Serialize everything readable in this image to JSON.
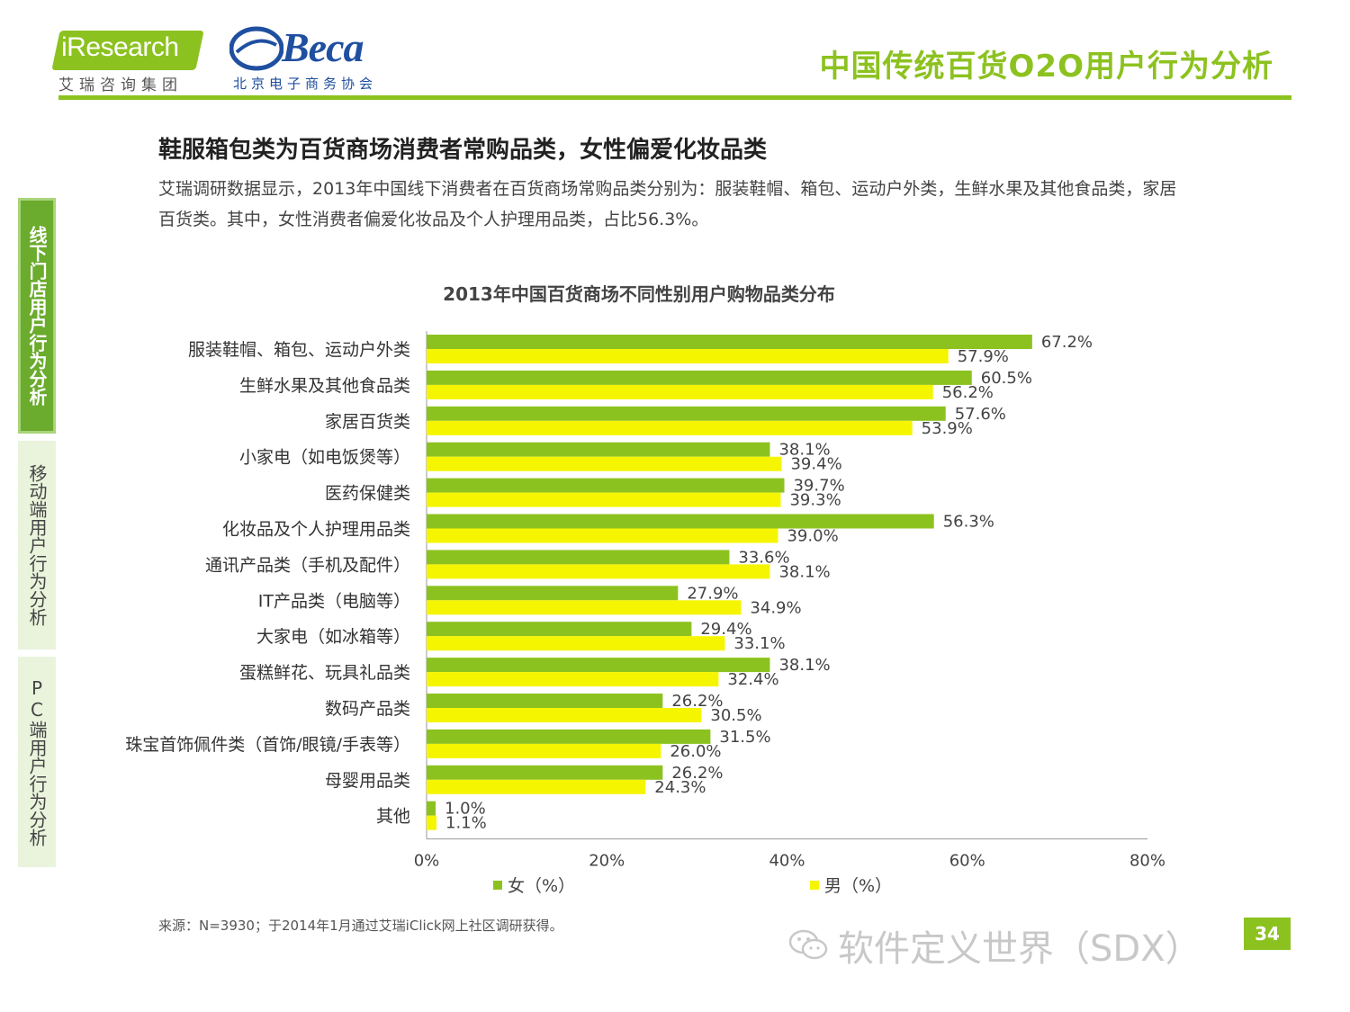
{
  "header": {
    "logo_iresearch": "iResearch",
    "logo_iresearch_sub": "艾瑞咨询集团",
    "logo_beca": "Beca",
    "logo_beca_sub": "北京电子商务协会",
    "title": "中国传统百货O2O用户行为分析",
    "accent_color": "#8cc21f"
  },
  "sidebar": {
    "items": [
      {
        "label": "线下门店用户行为分析",
        "active": true
      },
      {
        "label": "移动端用户行为分析",
        "active": false
      },
      {
        "label": "PC端用户行为分析",
        "active": false
      }
    ]
  },
  "main": {
    "heading": "鞋服箱包类为百货商场消费者常购品类，女性偏爱化妆品类",
    "desc": "艾瑞调研数据显示，2013年中国线下消费者在百货商场常购品类分别为：服装鞋帽、箱包、运动户外类，生鲜水果及其他食品类，家居百货类。其中，女性消费者偏爱化妆品及个人护理用品类，占比56.3%。"
  },
  "chart_data": {
    "type": "bar",
    "orientation": "horizontal",
    "title": "2013年中国百货商场不同性别用户购物品类分布",
    "categories": [
      "服装鞋帽、箱包、运动户外类",
      "生鲜水果及其他食品类",
      "家居百货类",
      "小家电（如电饭煲等）",
      "医药保健类",
      "化妆品及个人护理用品类",
      "通讯产品类（手机及配件）",
      "IT产品类（电脑等）",
      "大家电（如冰箱等）",
      "蛋糕鲜花、玩具礼品类",
      "数码产品类",
      "珠宝首饰佩件类（首饰/眼镜/手表等）",
      "母婴用品类",
      "其他"
    ],
    "series": [
      {
        "name": "女（%）",
        "color": "#8cc21f",
        "values": [
          67.2,
          60.5,
          57.6,
          38.1,
          39.7,
          56.3,
          33.6,
          27.9,
          29.4,
          38.1,
          26.2,
          31.5,
          26.2,
          1.0
        ]
      },
      {
        "name": "男（%）",
        "color": "#f5f500",
        "values": [
          57.9,
          56.2,
          53.9,
          39.4,
          39.3,
          39.0,
          38.1,
          34.9,
          33.1,
          32.4,
          30.5,
          26.0,
          24.3,
          1.1
        ]
      }
    ],
    "xlim": [
      0,
      80
    ],
    "xticks": [
      "0%",
      "20%",
      "40%",
      "60%",
      "80%"
    ],
    "legend_position": "bottom",
    "grid": false
  },
  "footer": {
    "source": "来源：N=3930；于2014年1月通过艾瑞iClick网上社区调研获得。",
    "watermark": "软件定义世界（SDX）",
    "page_number": "34"
  }
}
